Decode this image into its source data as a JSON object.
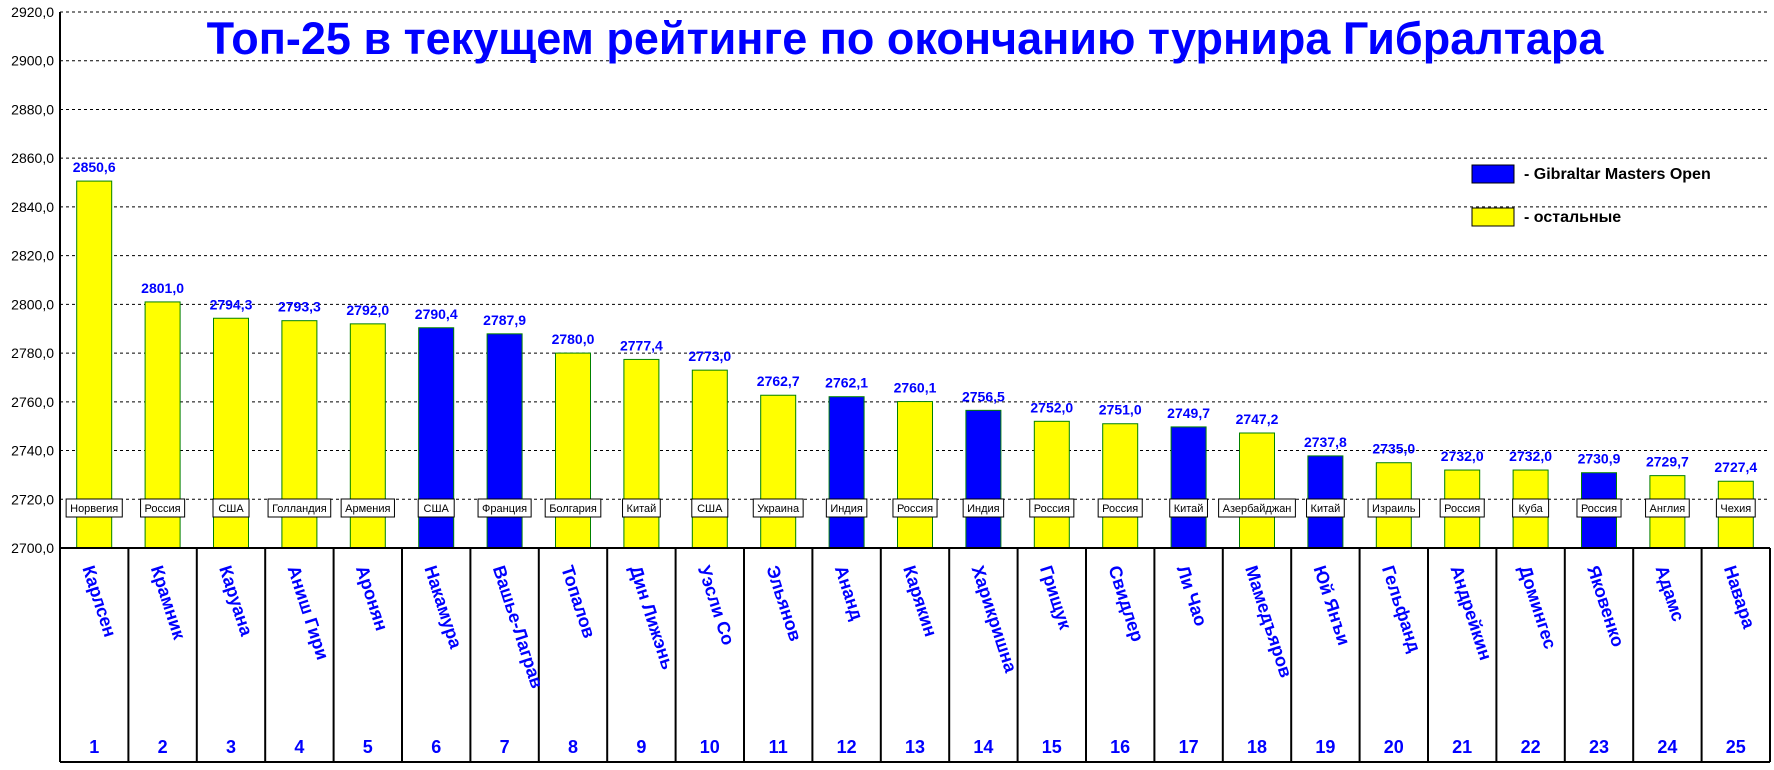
{
  "chart_data": {
    "type": "bar",
    "title": "Топ-25 в текущем рейтинге по окончанию турнира Гибралтара",
    "ylim": [
      2700,
      2920
    ],
    "ytick_step": 20,
    "grid": true,
    "legend_position": "top-right",
    "legend": [
      {
        "label": "- Gibraltar Masters Open",
        "color": "#0000ff"
      },
      {
        "label": "- остальные",
        "color": "#ffff00"
      }
    ],
    "colors": {
      "gibraltar": "#0000ff",
      "other": "#ffff00",
      "text": "#0000ff"
    },
    "bars": [
      {
        "rank": "1",
        "name": "Карлсен",
        "country": "Норвегия",
        "value": 2850.6,
        "label": "2850,6",
        "gibraltar": false
      },
      {
        "rank": "2",
        "name": "Крамник",
        "country": "Россия",
        "value": 2801.0,
        "label": "2801,0",
        "gibraltar": false
      },
      {
        "rank": "3",
        "name": "Каруана",
        "country": "США",
        "value": 2794.3,
        "label": "2794,3",
        "gibraltar": false
      },
      {
        "rank": "4",
        "name": "Аниш Гири",
        "country": "Голландия",
        "value": 2793.3,
        "label": "2793,3",
        "gibraltar": false
      },
      {
        "rank": "5",
        "name": "Аронян",
        "country": "Армения",
        "value": 2792.0,
        "label": "2792,0",
        "gibraltar": false
      },
      {
        "rank": "6",
        "name": "Накамура",
        "country": "США",
        "value": 2790.4,
        "label": "2790,4",
        "gibraltar": true
      },
      {
        "rank": "7",
        "name": "Вашье-Лаграв",
        "country": "Франция",
        "value": 2787.9,
        "label": "2787,9",
        "gibraltar": true
      },
      {
        "rank": "8",
        "name": "Топалов",
        "country": "Болгария",
        "value": 2780.0,
        "label": "2780,0",
        "gibraltar": false
      },
      {
        "rank": "9",
        "name": "Дин Лижэнь",
        "country": "Китай",
        "value": 2777.4,
        "label": "2777,4",
        "gibraltar": false
      },
      {
        "rank": "10",
        "name": "Уэсли Со",
        "country": "США",
        "value": 2773.0,
        "label": "2773,0",
        "gibraltar": false
      },
      {
        "rank": "11",
        "name": "Эльянов",
        "country": "Украина",
        "value": 2762.7,
        "label": "2762,7",
        "gibraltar": false
      },
      {
        "rank": "12",
        "name": "Ананд",
        "country": "Индия",
        "value": 2762.1,
        "label": "2762,1",
        "gibraltar": true
      },
      {
        "rank": "13",
        "name": "Карякин",
        "country": "Россия",
        "value": 2760.1,
        "label": "2760,1",
        "gibraltar": false
      },
      {
        "rank": "14",
        "name": "Харикришна",
        "country": "Индия",
        "value": 2756.5,
        "label": "2756,5",
        "gibraltar": true
      },
      {
        "rank": "15",
        "name": "Грищук",
        "country": "Россия",
        "value": 2752.0,
        "label": "2752,0",
        "gibraltar": false
      },
      {
        "rank": "16",
        "name": "Свидлер",
        "country": "Россия",
        "value": 2751.0,
        "label": "2751,0",
        "gibraltar": false
      },
      {
        "rank": "17",
        "name": "Ли Чао",
        "country": "Китай",
        "value": 2749.7,
        "label": "2749,7",
        "gibraltar": true
      },
      {
        "rank": "18",
        "name": "Мамедъяров",
        "country": "Азербайджан",
        "value": 2747.2,
        "label": "2747,2",
        "gibraltar": false
      },
      {
        "rank": "19",
        "name": "Юй Янъи",
        "country": "Китай",
        "value": 2737.8,
        "label": "2737,8",
        "gibraltar": true
      },
      {
        "rank": "20",
        "name": "Гельфанд",
        "country": "Израиль",
        "value": 2735.0,
        "label": "2735,0",
        "gibraltar": false
      },
      {
        "rank": "21",
        "name": "Андрейкин",
        "country": "Россия",
        "value": 2732.0,
        "label": "2732,0",
        "gibraltar": false
      },
      {
        "rank": "22",
        "name": "Домингес",
        "country": "Куба",
        "value": 2732.0,
        "label": "2732,0",
        "gibraltar": false
      },
      {
        "rank": "23",
        "name": "Яковенко",
        "country": "Россия",
        "value": 2730.9,
        "label": "2730,9",
        "gibraltar": true
      },
      {
        "rank": "24",
        "name": "Адамс",
        "country": "Англия",
        "value": 2729.7,
        "label": "2729,7",
        "gibraltar": false
      },
      {
        "rank": "25",
        "name": "Навара",
        "country": "Чехия",
        "value": 2727.4,
        "label": "2727,4",
        "gibraltar": false
      }
    ]
  }
}
